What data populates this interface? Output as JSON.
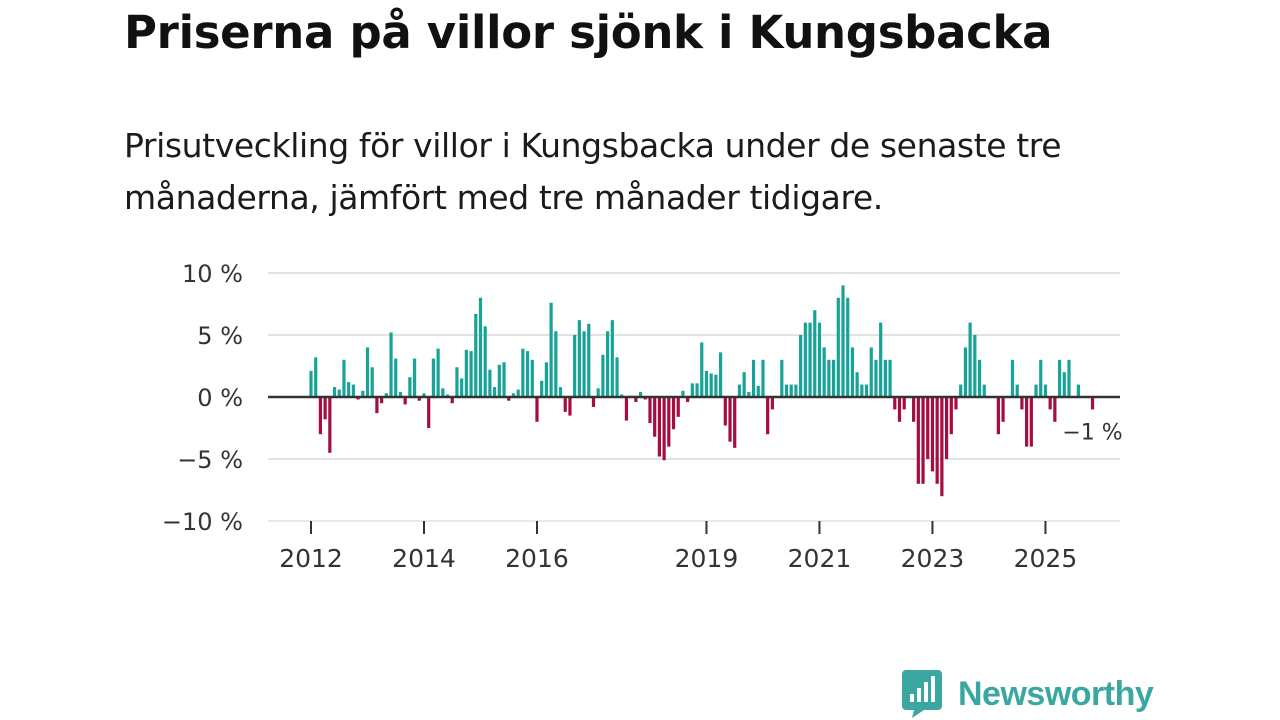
{
  "title": "Priserna på villor sjönk i Kungsbacka",
  "subtitle": "Prisutveckling för villor i Kungsbacka under de senaste tre månaderna, jämfört med tre månader tidigare.",
  "colors": {
    "positive": "#17a398",
    "negative": "#a50c3f",
    "grid": "#d9d9d9",
    "zero": "#333333",
    "brand": "#3aa8a0"
  },
  "logo": {
    "name": "Newsworthy",
    "icon": "chart-bubble-icon"
  },
  "chart_data": {
    "type": "bar",
    "title": "Priserna på villor sjönk i Kungsbacka",
    "ylabel": "",
    "xlabel": "",
    "ylim": [
      -10,
      10
    ],
    "y_ticks": [
      {
        "value": 10,
        "label": "10 %"
      },
      {
        "value": 5,
        "label": "5 %"
      },
      {
        "value": 0,
        "label": "0 %"
      },
      {
        "value": -5,
        "label": "−5 %"
      },
      {
        "value": -10,
        "label": "−10 %"
      }
    ],
    "x_ticks": [
      {
        "index": 0,
        "label": "2012"
      },
      {
        "index": 24,
        "label": "2014"
      },
      {
        "index": 48,
        "label": "2016"
      },
      {
        "index": 84,
        "label": "2019"
      },
      {
        "index": 108,
        "label": "2021"
      },
      {
        "index": 132,
        "label": "2023"
      },
      {
        "index": 156,
        "label": "2025"
      }
    ],
    "start": "2012-01",
    "values": [
      2.1,
      3.2,
      -3.0,
      -1.8,
      -4.5,
      0.8,
      0.6,
      3.0,
      1.2,
      1.0,
      -0.2,
      0.5,
      4.0,
      2.4,
      -1.3,
      -0.5,
      0.3,
      5.2,
      3.1,
      0.4,
      -0.6,
      1.6,
      3.1,
      -0.3,
      0.3,
      -2.5,
      3.1,
      3.9,
      0.7,
      0.2,
      -0.5,
      2.4,
      1.5,
      3.8,
      3.7,
      6.7,
      8.0,
      5.7,
      2.2,
      0.8,
      2.6,
      2.8,
      -0.3,
      0.3,
      0.6,
      3.9,
      3.7,
      3.0,
      -2.0,
      1.3,
      2.8,
      7.6,
      5.3,
      0.8,
      -1.2,
      -1.5,
      5.0,
      6.2,
      5.3,
      5.9,
      -0.8,
      0.7,
      3.4,
      5.3,
      6.2,
      3.2,
      0.2,
      -1.9,
      0.1,
      -0.4,
      0.4,
      -0.2,
      -2.1,
      -3.2,
      -4.8,
      -5.1,
      -4.0,
      -2.6,
      -1.6,
      0.5,
      -0.4,
      1.1,
      1.1,
      4.4,
      2.1,
      1.9,
      1.8,
      3.6,
      -2.3,
      -3.6,
      -4.1,
      1.0,
      2.0,
      0.4,
      3.0,
      0.9,
      3.0,
      -3.0,
      -1.0,
      0,
      3.0,
      1.0,
      1.0,
      1.0,
      5.0,
      6.0,
      6.0,
      7.0,
      6.0,
      4.0,
      3.0,
      3.0,
      8.0,
      9.0,
      8.0,
      4.0,
      2.0,
      1.0,
      1.0,
      4.0,
      3.0,
      6.0,
      3.0,
      3.0,
      -1.0,
      -2.0,
      -1.0,
      0,
      -2.0,
      -7.0,
      -7.0,
      -5.0,
      -6.0,
      -7.0,
      -8.0,
      -5.0,
      -3.0,
      -1.0,
      1.0,
      4.0,
      6.0,
      5.0,
      3.0,
      1.0,
      0,
      0,
      -3.0,
      -2.0,
      0,
      3.0,
      1.0,
      -1.0,
      -4.0,
      -4.0,
      1.0,
      3.0,
      1.0,
      -1.0,
      -2.0,
      3.0,
      2.0,
      3.0,
      0,
      1.0,
      0,
      0,
      -1.0
    ],
    "annotation": {
      "index": 166,
      "label": "−1 %"
    }
  }
}
